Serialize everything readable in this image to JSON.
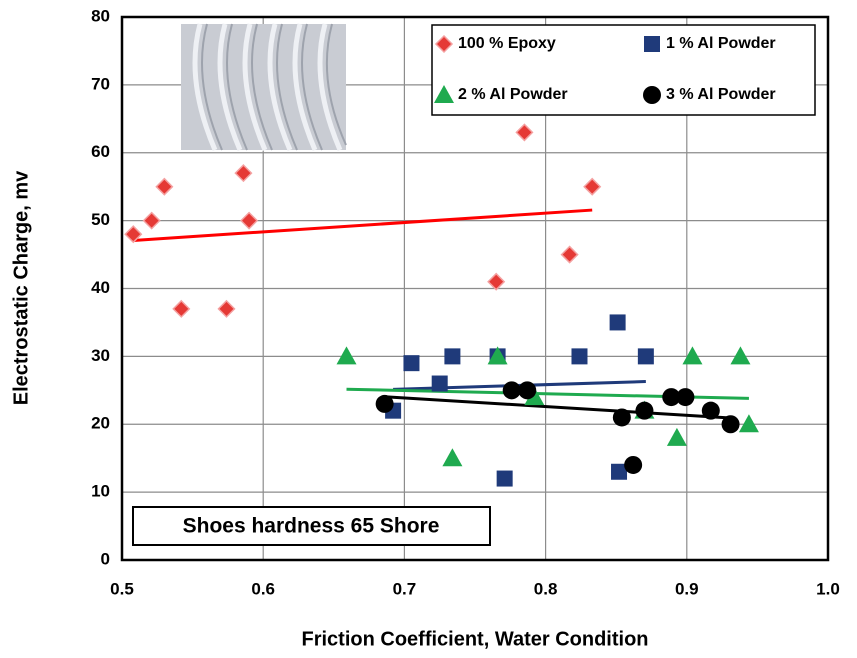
{
  "chart_data": {
    "type": "scatter",
    "xlabel": "Friction Coefficient, Water  Condition",
    "ylabel": "Electrostatic Charge, mv",
    "annotation": "Shoes hardness 65 Shore",
    "xlim": [
      0.5,
      1.0
    ],
    "xticks": [
      0.5,
      0.6,
      0.7,
      0.8,
      0.9,
      {
        "value": 1,
        "label": "1.0"
      }
    ],
    "ylim": [
      0,
      80
    ],
    "yticks": [
      0,
      10,
      20,
      30,
      40,
      50,
      60,
      70,
      80
    ],
    "grid": true,
    "trendline": true,
    "legend": "upper right",
    "series": [
      {
        "name": "100 % Epoxy",
        "color": "#e53935",
        "marker": "diamond",
        "trend_color": "#ff0000",
        "x": [
          0.508,
          0.521,
          0.53,
          0.542,
          0.574,
          0.586,
          0.59,
          0.765,
          0.785,
          0.817,
          0.833
        ],
        "values": [
          48,
          50,
          55,
          37,
          37,
          57,
          50,
          41,
          63,
          45,
          55
        ]
      },
      {
        "name": "1 % Al Powder",
        "color": "#1f3a7a",
        "marker": "square",
        "trend_color": "#1f3a7a",
        "x": [
          0.692,
          0.705,
          0.725,
          0.734,
          0.766,
          0.771,
          0.824,
          0.851,
          0.852,
          0.871
        ],
        "values": [
          22,
          29,
          26,
          30,
          30,
          12,
          30,
          35,
          13,
          30
        ]
      },
      {
        "name": "2 % Al Powder",
        "color": "#1faa4f",
        "marker": "triangle",
        "trend_color": "#1faa4f",
        "x": [
          0.659,
          0.734,
          0.766,
          0.792,
          0.87,
          0.893,
          0.904,
          0.938,
          0.944
        ],
        "values": [
          30,
          15,
          30,
          24,
          22,
          18,
          30,
          30,
          20
        ]
      },
      {
        "name": "3 % Al Powder",
        "color": "#000000",
        "marker": "circle",
        "trend_color": "#000000",
        "x": [
          0.686,
          0.776,
          0.787,
          0.854,
          0.862,
          0.87,
          0.889,
          0.899,
          0.917,
          0.931
        ],
        "values": [
          23,
          25,
          25,
          21,
          14,
          22,
          24,
          24,
          22,
          20
        ]
      }
    ]
  }
}
